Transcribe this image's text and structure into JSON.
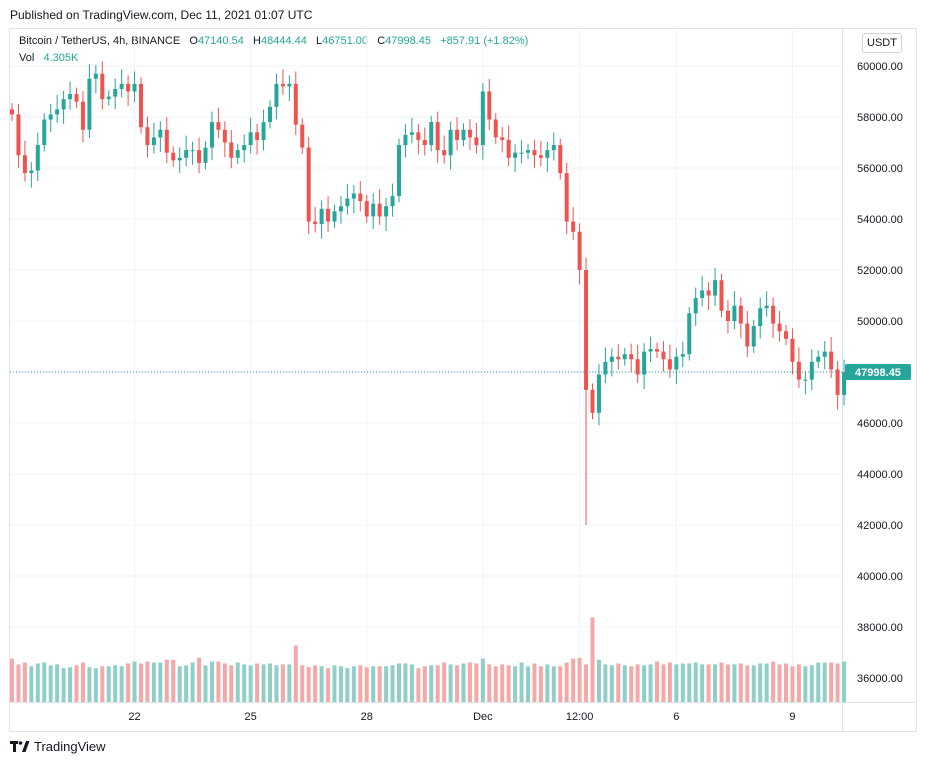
{
  "published": "Published on TradingView.com, Dec 11, 2021 01:07 UTC",
  "legend": {
    "symbol": "Bitcoin / TetherUS, 4h, BINANCE",
    "open_label": "O",
    "open": "47140.54",
    "high_label": "H",
    "high": "48444.44",
    "low_label": "L",
    "low": "46751.00",
    "close_label": "C",
    "close": "47998.45",
    "change": "+857.91 (+1.82%)",
    "vol_label": "Vol",
    "vol": "4.305K"
  },
  "currency_button": "USDT",
  "footer_brand": "TradingView",
  "colors": {
    "up": "#26a69a",
    "down": "#ef5350",
    "up_vol": "#8fcfc7",
    "down_vol": "#f4a9a8",
    "last_price": "#26a69a"
  },
  "chart_data": {
    "type": "candlestick",
    "interval": "4h",
    "ylim": [
      35200,
      60800
    ],
    "y_ticks": [
      36000,
      38000,
      40000,
      42000,
      44000,
      46000,
      48000,
      50000,
      52000,
      54000,
      56000,
      58000,
      60000
    ],
    "y_tick_labels": [
      "36000.00",
      "38000.00",
      "40000.00",
      "42000.00",
      "44000.00",
      "46000.00",
      "48000.00",
      "50000.00",
      "52000.00",
      "54000.00",
      "56000.00",
      "58000.00",
      "60000.00"
    ],
    "x_labels": [
      {
        "label": "22",
        "index": 19
      },
      {
        "label": "25",
        "index": 37
      },
      {
        "label": "28",
        "index": 55
      },
      {
        "label": "Dec",
        "index": 73
      },
      {
        "label": "12:00",
        "index": 88
      },
      {
        "label": "6",
        "index": 103
      },
      {
        "label": "9",
        "index": 121
      }
    ],
    "last_price": 47998.45,
    "last_price_label": "47998.45",
    "closes": [
      58100,
      56500,
      55800,
      55900,
      56900,
      57900,
      58100,
      58300,
      58700,
      58900,
      58600,
      57500,
      59500,
      59700,
      58700,
      58800,
      59100,
      59300,
      59000,
      59300,
      57600,
      56900,
      57200,
      57500,
      56600,
      56300,
      56400,
      56700,
      56700,
      56200,
      56800,
      57800,
      57500,
      57000,
      56400,
      56700,
      56900,
      57400,
      57100,
      57800,
      58400,
      59300,
      59200,
      59300,
      57700,
      56800,
      53900,
      53800,
      54400,
      53900,
      54300,
      54500,
      54800,
      55000,
      54700,
      54100,
      54600,
      54100,
      54500,
      54900,
      56900,
      57300,
      57400,
      57100,
      56900,
      57800,
      56700,
      56500,
      57500,
      57100,
      57500,
      57200,
      56900,
      59000,
      57900,
      57200,
      57100,
      56400,
      56600,
      56600,
      56700,
      56500,
      56400,
      56700,
      56900,
      55800,
      53900,
      53500,
      52000,
      47300,
      46400,
      47900,
      48400,
      48600,
      48500,
      48700,
      48500,
      47900,
      48800,
      48900,
      48800,
      48500,
      48100,
      48600,
      48700,
      50300,
      50900,
      51200,
      51000,
      51600,
      50400,
      50000,
      50600,
      49900,
      49000,
      49800,
      50500,
      50600,
      49900,
      49600,
      49300,
      48400,
      47700,
      47700,
      48400,
      48600,
      48800,
      48100,
      47100,
      47998
    ],
    "volumes_k": [
      4.6,
      4.0,
      4.2,
      3.8,
      4.1,
      4.2,
      3.9,
      4.0,
      3.6,
      3.7,
      3.9,
      4.2,
      3.7,
      3.6,
      3.8,
      3.8,
      3.9,
      3.8,
      4.1,
      4.3,
      4.1,
      4.3,
      4.2,
      4.2,
      4.5,
      4.5,
      3.8,
      3.9,
      4.2,
      4.7,
      3.9,
      4.3,
      4.3,
      4.1,
      3.9,
      4.2,
      4.0,
      3.9,
      4.1,
      4.0,
      4.1,
      3.9,
      4.0,
      4.0,
      6.0,
      3.9,
      3.7,
      3.9,
      3.8,
      3.6,
      3.9,
      3.8,
      3.6,
      3.8,
      3.9,
      3.7,
      3.8,
      3.8,
      3.8,
      3.9,
      4.1,
      4.1,
      4.0,
      3.6,
      3.8,
      3.9,
      3.9,
      4.2,
      4.0,
      3.9,
      4.1,
      4.2,
      4.1,
      4.6,
      4.0,
      3.8,
      4.0,
      3.9,
      3.8,
      4.2,
      3.8,
      4.1,
      3.8,
      4.0,
      3.8,
      3.8,
      4.2,
      4.6,
      4.7,
      4.0,
      9.0,
      4.5,
      4.0,
      3.9,
      4.1,
      3.9,
      3.8,
      4.0,
      3.9,
      4.0,
      4.3,
      4.0,
      4.2,
      4.0,
      4.1,
      4.1,
      4.2,
      4.0,
      4.0,
      4.0,
      4.2,
      4.0,
      4.0,
      4.1,
      3.9,
      3.9,
      4.1,
      4.1,
      4.3,
      4.0,
      4.1,
      3.8,
      4.0,
      3.8,
      3.9,
      4.2,
      4.2,
      4.2,
      4.1,
      4.3
    ]
  }
}
